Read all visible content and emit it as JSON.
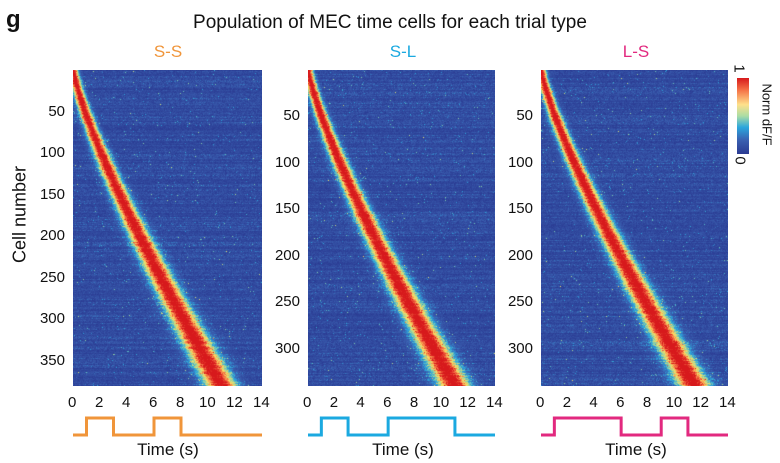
{
  "panel_letter": "g",
  "figure_title": "Population of MEC time cells for each trial type",
  "y_axis_label": "Cell number",
  "colorbar": {
    "label": "Norm dF/F",
    "max_label": "1",
    "min_label": "0",
    "colormap": "jet (blue-cyan-yellow-red)"
  },
  "chart_data": [
    {
      "type": "heatmap",
      "title": "S-S",
      "title_color": "#F0953A",
      "x_label": "Time (s)",
      "x_range": [
        0,
        14
      ],
      "x_ticks": [
        0,
        2,
        4,
        6,
        8,
        10,
        12,
        14
      ],
      "y_ticks": [
        50,
        100,
        150,
        200,
        250,
        300,
        350
      ],
      "n_cells": 380,
      "stimulus_on": [
        [
          1,
          3
        ],
        [
          6,
          8
        ]
      ],
      "stimulus_color": "#F0953A",
      "peak_time_first_cell": 0,
      "peak_time_last_cell": 11
    },
    {
      "type": "heatmap",
      "title": "S-L",
      "title_color": "#1BA9E0",
      "x_label": "Time (s)",
      "x_range": [
        0,
        14
      ],
      "x_ticks": [
        0,
        2,
        4,
        6,
        8,
        10,
        12,
        14
      ],
      "y_ticks": [
        50,
        100,
        150,
        200,
        250,
        300
      ],
      "n_cells": 340,
      "stimulus_on": [
        [
          1,
          3
        ],
        [
          6,
          11
        ]
      ],
      "stimulus_color": "#1BA9E0",
      "peak_time_first_cell": 0,
      "peak_time_last_cell": 11
    },
    {
      "type": "heatmap",
      "title": "L-S",
      "title_color": "#E2297F",
      "x_label": "Time (s)",
      "x_range": [
        0,
        14
      ],
      "x_ticks": [
        0,
        2,
        4,
        6,
        8,
        10,
        12,
        14
      ],
      "y_ticks": [
        50,
        100,
        150,
        200,
        250,
        300
      ],
      "n_cells": 340,
      "stimulus_on": [
        [
          1,
          6
        ],
        [
          9,
          11
        ]
      ],
      "stimulus_color": "#E2297F",
      "peak_time_first_cell": 0,
      "peak_time_last_cell": 11.5
    }
  ]
}
